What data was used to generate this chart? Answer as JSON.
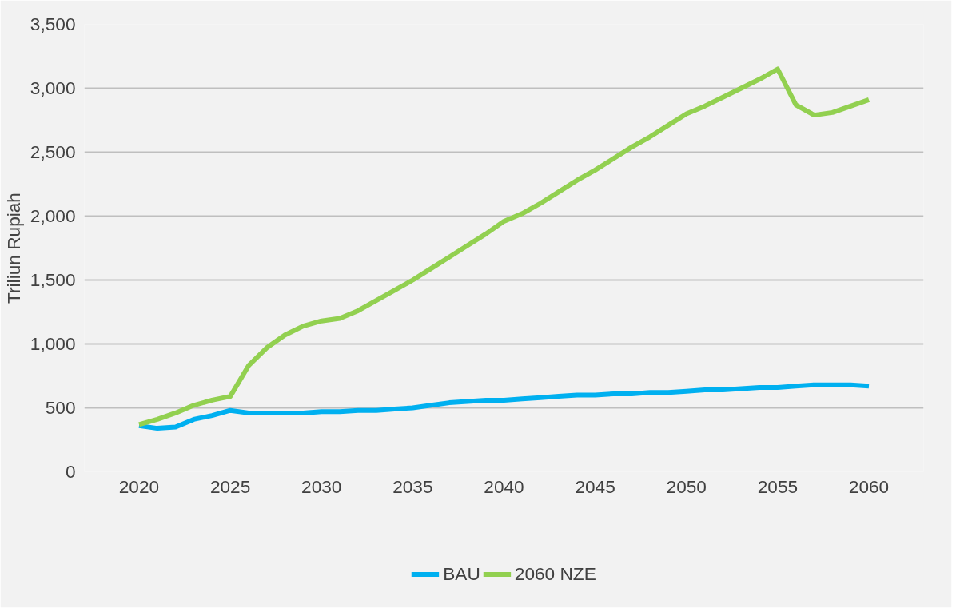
{
  "chart_data": {
    "type": "line",
    "ylabel": "Triliun Rupiah",
    "x": [
      2020,
      2021,
      2022,
      2023,
      2024,
      2025,
      2026,
      2027,
      2028,
      2029,
      2030,
      2031,
      2032,
      2033,
      2034,
      2035,
      2036,
      2037,
      2038,
      2039,
      2040,
      2041,
      2042,
      2043,
      2044,
      2045,
      2046,
      2047,
      2048,
      2049,
      2050,
      2051,
      2052,
      2053,
      2054,
      2055,
      2056,
      2057,
      2058,
      2059,
      2060
    ],
    "series": [
      {
        "name": "BAU",
        "color": "#00b0f0",
        "values": [
          360,
          340,
          350,
          410,
          440,
          480,
          460,
          460,
          460,
          460,
          470,
          470,
          480,
          480,
          490,
          500,
          520,
          540,
          550,
          560,
          560,
          570,
          580,
          590,
          600,
          600,
          610,
          610,
          620,
          620,
          630,
          640,
          640,
          650,
          660,
          660,
          670,
          680,
          680,
          680,
          670
        ]
      },
      {
        "name": "2060 NZE",
        "color": "#92d050",
        "values": [
          370,
          410,
          460,
          520,
          560,
          590,
          830,
          970,
          1070,
          1140,
          1180,
          1200,
          1260,
          1340,
          1420,
          1500,
          1590,
          1680,
          1770,
          1860,
          1960,
          2020,
          2100,
          2190,
          2280,
          2360,
          2450,
          2540,
          2620,
          2710,
          2800,
          2860,
          2930,
          3000,
          3070,
          3150,
          2870,
          2790,
          2810,
          2860,
          2910
        ]
      }
    ],
    "xlim": [
      2017,
      2063
    ],
    "xticks": [
      2020,
      2025,
      2030,
      2035,
      2040,
      2045,
      2050,
      2055,
      2060
    ],
    "ylim": [
      0,
      3500
    ],
    "yticks": [
      {
        "value": 0,
        "label": "0"
      },
      {
        "value": 500,
        "label": "500"
      },
      {
        "value": 1000,
        "label": "1,000"
      },
      {
        "value": 1500,
        "label": "1,500"
      },
      {
        "value": 2000,
        "label": "2,000"
      },
      {
        "value": 2500,
        "label": "2,500"
      },
      {
        "value": 3000,
        "label": "3,000"
      },
      {
        "value": 3500,
        "label": "3,500"
      }
    ],
    "grid": "y",
    "legend": "bottom",
    "marker": "none",
    "line_style": "solid"
  }
}
